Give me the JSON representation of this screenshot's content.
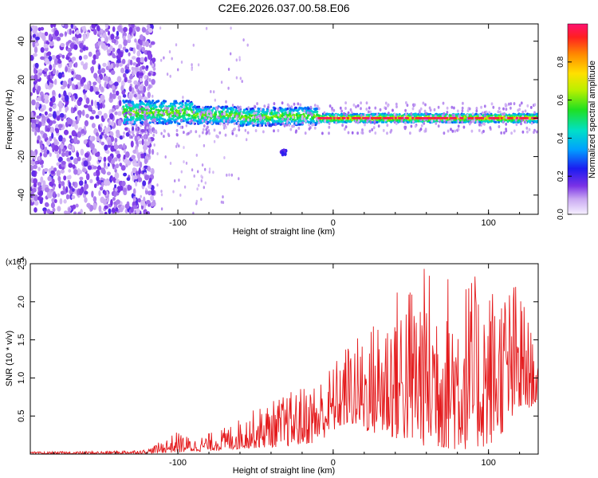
{
  "figure_title": "C2E6.2026.037.00.58.E06",
  "colors": {
    "snr_line": "#e41a1c",
    "axis": "#000000",
    "background": "#ffffff"
  },
  "chart_data": [
    {
      "type": "heatmap",
      "title": "C2E6.2026.037.00.58.E06",
      "xlabel": "Height of straight line (km)",
      "ylabel": "Frequency (Hz)",
      "xlim": [
        -195,
        132
      ],
      "ylim": [
        -50,
        49
      ],
      "xticks": [
        -100,
        0,
        100
      ],
      "xtick_labels": [
        "-100",
        "0",
        "100"
      ],
      "yticks": [
        -40,
        -20,
        0,
        20,
        40
      ],
      "ytick_labels": [
        "-40",
        "-20",
        "0",
        "20",
        "40"
      ],
      "colorbar": {
        "label": "Normalized spectral amplitude",
        "range": [
          0,
          1
        ],
        "ticks": [
          0.0,
          0.2,
          0.4,
          0.6,
          0.8
        ],
        "tick_labels": [
          "0.0",
          "0.2",
          "0.4",
          "0.6",
          "0.8"
        ]
      },
      "features": {
        "broadband_noise_x_range": [
          -195,
          -125
        ],
        "signal_band_start_x": -135,
        "signal_center_freq": 0,
        "secondary_blob": {
          "x": -32,
          "freq": -18
        }
      }
    },
    {
      "type": "line",
      "title": "",
      "xlabel": "Height of straight line (km)",
      "ylabel": "SNR (10 * v/v)",
      "y_exponent": "(x10^4)",
      "xlim": [
        -195,
        132
      ],
      "ylim": [
        0,
        2.5
      ],
      "xticks": [
        -100,
        0,
        100
      ],
      "xtick_labels": [
        "-100",
        "0",
        "100"
      ],
      "yticks": [
        0.5,
        1.0,
        1.5,
        2.0,
        2.5
      ],
      "ytick_labels": [
        "0.5",
        "1.0",
        "1.5",
        "2.0",
        "2.5"
      ],
      "envelope": {
        "x": [
          -195,
          -150,
          -120,
          -100,
          -90,
          -70,
          -50,
          -30,
          -10,
          0,
          10,
          20,
          40,
          60,
          80,
          100,
          120,
          132
        ],
        "min": [
          0.0,
          0.0,
          0.01,
          0.02,
          0.03,
          0.05,
          0.08,
          0.1,
          0.15,
          0.3,
          0.4,
          0.3,
          0.2,
          0.1,
          0.05,
          0.1,
          0.5,
          0.7
        ],
        "max": [
          0.03,
          0.04,
          0.06,
          0.3,
          0.2,
          0.35,
          0.6,
          0.8,
          1.0,
          1.2,
          1.5,
          1.6,
          2.2,
          2.5,
          2.4,
          2.3,
          2.3,
          1.2
        ]
      }
    }
  ]
}
